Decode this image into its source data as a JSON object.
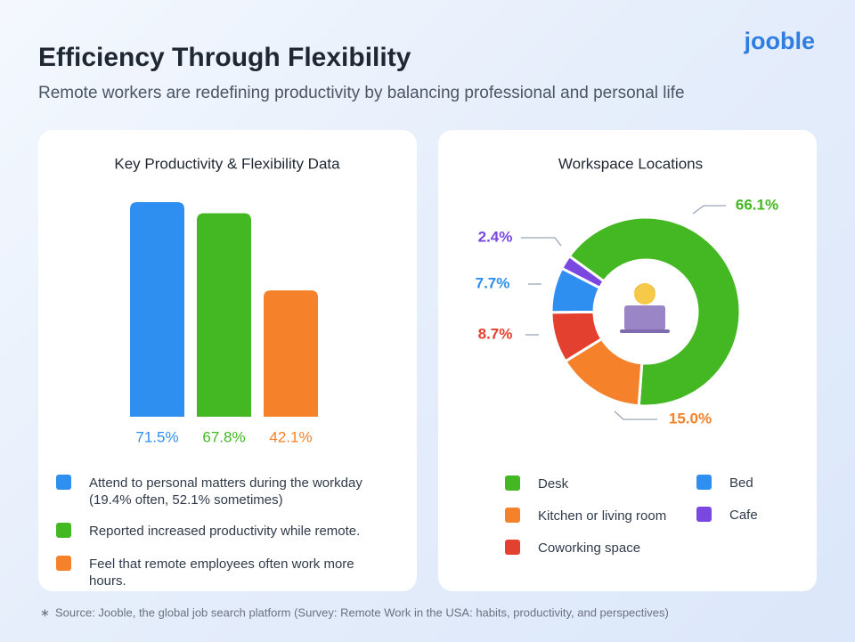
{
  "header": {
    "title": "Efficiency Through Flexibility",
    "subtitle": "Remote workers are redefining productivity by balancing professional and personal life",
    "logo": "jooble"
  },
  "chart_data": [
    {
      "type": "bar",
      "title": "Key Productivity & Flexibility Data",
      "categories": [
        "Attend to personal matters during the workday (19.4% often, 52.1% sometimes)",
        "Reported increased productivity while remote.",
        "Feel that remote employees often work more hours."
      ],
      "values": [
        71.5,
        67.8,
        42.1
      ],
      "value_labels": [
        "71.5%",
        "67.8%",
        "42.1%"
      ],
      "colors": [
        "#2f8ff0",
        "#44b823",
        "#f5822a"
      ]
    },
    {
      "type": "donut",
      "title": "Workspace Locations",
      "categories": [
        "Desk",
        "Kitchen or living room",
        "Coworking space",
        "Bed",
        "Cafe"
      ],
      "values": [
        66.1,
        15.0,
        8.7,
        7.7,
        2.4
      ],
      "value_labels": [
        "66.1%",
        "15.0%",
        "8.7%",
        "7.7%",
        "2.4%"
      ],
      "colors": [
        "#44b823",
        "#f5822a",
        "#e3402f",
        "#2f8ff0",
        "#7a47e0"
      ]
    }
  ],
  "footer": {
    "marker": "∗",
    "source": "Source: Jooble, the global job search platform (Survey: Remote Work in the USA: habits, productivity, and perspectives)"
  }
}
